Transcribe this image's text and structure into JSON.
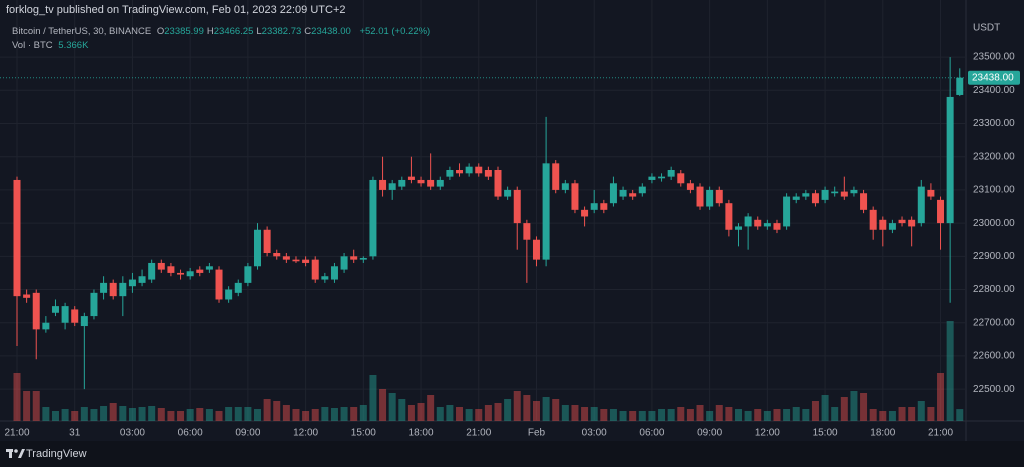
{
  "header": {
    "byline": "forklog_tv published on TradingView.com, Feb 01, 2023 22:09 UTC+2",
    "brand": "TradingView"
  },
  "legend": {
    "symbol": "Bitcoin / TetherUS, 30, BINANCE",
    "ohlc": [
      {
        "label": "O",
        "value": "23385.99"
      },
      {
        "label": "H",
        "value": "23466.25"
      },
      {
        "label": "L",
        "value": "23382.73"
      },
      {
        "label": "C",
        "value": "23438.00"
      }
    ],
    "change": "+52.01 (+0.22%)",
    "volume_label": "Vol · BTC",
    "volume_value": "5.366K"
  },
  "chart_data": {
    "type": "candlestick",
    "currency": "USDT",
    "categories": [
      "21:00",
      null,
      null,
      null,
      null,
      null,
      "31",
      null,
      null,
      null,
      null,
      null,
      "03:00",
      null,
      null,
      null,
      null,
      null,
      "06:00",
      null,
      null,
      null,
      null,
      null,
      "09:00",
      null,
      null,
      null,
      null,
      null,
      "12:00",
      null,
      null,
      null,
      null,
      null,
      "15:00",
      null,
      null,
      null,
      null,
      null,
      "18:00",
      null,
      null,
      null,
      null,
      null,
      "21:00",
      null,
      null,
      null,
      null,
      null,
      "Feb",
      null,
      null,
      null,
      null,
      null,
      "03:00",
      null,
      null,
      null,
      null,
      null,
      "06:00",
      null,
      null,
      null,
      null,
      null,
      "09:00",
      null,
      null,
      null,
      null,
      null,
      "12:00",
      null,
      null,
      null,
      null,
      null,
      "15:00",
      null,
      null,
      null,
      null,
      null,
      "18:00",
      null,
      null,
      null,
      null,
      null,
      "21:00",
      null,
      null
    ],
    "open": [
      23130,
      22785,
      22790,
      22680,
      22730,
      22700,
      22740,
      22690,
      22720,
      22790,
      22820,
      22780,
      22810,
      22820,
      22830,
      22880,
      22870,
      22850,
      22840,
      22860,
      22860,
      22860,
      22770,
      22790,
      22820,
      22870,
      22980,
      22910,
      22900,
      22890,
      22890,
      22890,
      22830,
      22830,
      22860,
      22900,
      22890,
      22900,
      23130,
      23100,
      23110,
      23140,
      23130,
      23130,
      23110,
      23140,
      23160,
      23150,
      23170,
      23160,
      23160,
      23080,
      23100,
      23000,
      22950,
      22890,
      23180,
      23100,
      23120,
      23040,
      23040,
      23060,
      23060,
      23080,
      23090,
      23090,
      23130,
      23135,
      23140,
      23150,
      23120,
      23110,
      23050,
      23100,
      23060,
      22980,
      22990,
      23010,
      22990,
      23000,
      22990,
      23070,
      23080,
      23090,
      23070,
      23090,
      23095,
      23090,
      23090,
      23040,
      23010,
      22980,
      23010,
      23010,
      23000,
      23100,
      23070,
      23000,
      23385.99
    ],
    "high": [
      23140,
      22800,
      22800,
      22720,
      22770,
      22760,
      22750,
      22730,
      22800,
      22840,
      22830,
      22840,
      22850,
      22860,
      22890,
      22890,
      22880,
      22860,
      22865,
      22870,
      22880,
      22870,
      22810,
      22830,
      22880,
      23000,
      22990,
      22920,
      22910,
      22900,
      22900,
      22900,
      22850,
      22880,
      22910,
      22920,
      22900,
      23140,
      23200,
      23130,
      23140,
      23200,
      23140,
      23210,
      23140,
      23170,
      23180,
      23180,
      23180,
      23170,
      23170,
      23110,
      23110,
      23010,
      22960,
      23320,
      23190,
      23130,
      23130,
      23050,
      23100,
      23070,
      23140,
      23110,
      23100,
      23120,
      23150,
      23150,
      23170,
      23160,
      23130,
      23120,
      23110,
      23110,
      23070,
      23000,
      23030,
      23020,
      23010,
      23010,
      23090,
      23090,
      23100,
      23100,
      23110,
      23110,
      23140,
      23110,
      23100,
      23050,
      23020,
      23010,
      23020,
      23020,
      23130,
      23120,
      23080,
      23500,
      23466.25
    ],
    "low": [
      22630,
      22760,
      22590,
      22670,
      22720,
      22680,
      22690,
      22500,
      22710,
      22770,
      22770,
      22720,
      22790,
      22810,
      22820,
      22850,
      22840,
      22830,
      22830,
      22840,
      22850,
      22760,
      22760,
      22780,
      22810,
      22860,
      22900,
      22890,
      22880,
      22880,
      22870,
      22820,
      22820,
      22820,
      22850,
      22880,
      22880,
      22890,
      23080,
      23070,
      23100,
      23120,
      23110,
      23100,
      23100,
      23130,
      23140,
      23140,
      23140,
      23130,
      23070,
      23070,
      22920,
      22820,
      22870,
      22870,
      23090,
      23090,
      23030,
      22990,
      23030,
      23030,
      23050,
      23070,
      23070,
      23080,
      23120,
      23125,
      23130,
      23110,
      23090,
      23040,
      23040,
      23050,
      22960,
      22930,
      22920,
      22980,
      22980,
      22970,
      22980,
      23060,
      23070,
      23050,
      23060,
      23080,
      23070,
      23080,
      23030,
      22950,
      22930,
      22970,
      22990,
      22930,
      22990,
      23070,
      22920,
      22760,
      23382.73
    ],
    "close": [
      22780,
      22775,
      22680,
      22700,
      22750,
      22750,
      22700,
      22720,
      22790,
      22820,
      22780,
      22820,
      22830,
      22840,
      22880,
      22860,
      22850,
      22845,
      22855,
      22850,
      22870,
      22770,
      22800,
      22820,
      22870,
      22980,
      22910,
      22900,
      22890,
      22885,
      22880,
      22830,
      22840,
      22870,
      22900,
      22890,
      22895,
      23130,
      23100,
      23120,
      23130,
      23130,
      23120,
      23110,
      23130,
      23160,
      23150,
      23170,
      23150,
      23140,
      23080,
      23100,
      23000,
      22950,
      22890,
      23180,
      23100,
      23120,
      23040,
      23020,
      23060,
      23040,
      23120,
      23100,
      23080,
      23110,
      23140,
      23140,
      23160,
      23120,
      23100,
      23050,
      23100,
      23060,
      22980,
      22990,
      23020,
      22990,
      23000,
      22980,
      23080,
      23080,
      23090,
      23060,
      23100,
      23095,
      23080,
      23100,
      23040,
      22980,
      22980,
      23000,
      23000,
      22990,
      23110,
      23080,
      23000,
      23380,
      23438
    ],
    "volumes": [
      21600,
      13500,
      13500,
      6300,
      4500,
      5400,
      4500,
      6300,
      5400,
      6750,
      8100,
      6750,
      5850,
      6300,
      6750,
      5850,
      4500,
      4500,
      5400,
      5850,
      5400,
      4500,
      6300,
      6300,
      6300,
      5400,
      9900,
      9000,
      7200,
      5400,
      4500,
      5400,
      6300,
      5850,
      6300,
      6300,
      7200,
      20700,
      14400,
      12600,
      9900,
      7200,
      8100,
      11700,
      6300,
      7200,
      6300,
      5400,
      5400,
      7200,
      8100,
      9900,
      13500,
      11700,
      9000,
      10800,
      9900,
      7200,
      7200,
      6300,
      6300,
      5400,
      5400,
      4500,
      4500,
      4500,
      4500,
      5400,
      5400,
      6300,
      5400,
      7200,
      4500,
      7200,
      6300,
      5400,
      4500,
      5400,
      4500,
      5400,
      5400,
      6300,
      5400,
      9000,
      11700,
      6300,
      10800,
      13500,
      12600,
      5400,
      4500,
      4500,
      6300,
      6300,
      9000,
      6300,
      21600,
      45000,
      5366
    ],
    "up_color": "#26a69a",
    "down_color": "#ef5350",
    "ylim": [
      22404,
      23672
    ],
    "yticks": [
      {
        "value": 22500,
        "label": "22500.00"
      },
      {
        "value": 22600,
        "label": "22600.00"
      },
      {
        "value": 22700,
        "label": "22700.00"
      },
      {
        "value": 22800,
        "label": "22800.00"
      },
      {
        "value": 22900,
        "label": "22900.00"
      },
      {
        "value": 23000,
        "label": "23000.00"
      },
      {
        "value": 23100,
        "label": "23100.00"
      },
      {
        "value": 23200,
        "label": "23200.00"
      },
      {
        "value": 23300,
        "label": "23300.00"
      },
      {
        "value": 23400,
        "label": "23400.00"
      },
      {
        "value": 23500,
        "label": "23500.00"
      }
    ],
    "last_price": {
      "value": 23438,
      "label": "23438.00"
    },
    "grid": true
  }
}
